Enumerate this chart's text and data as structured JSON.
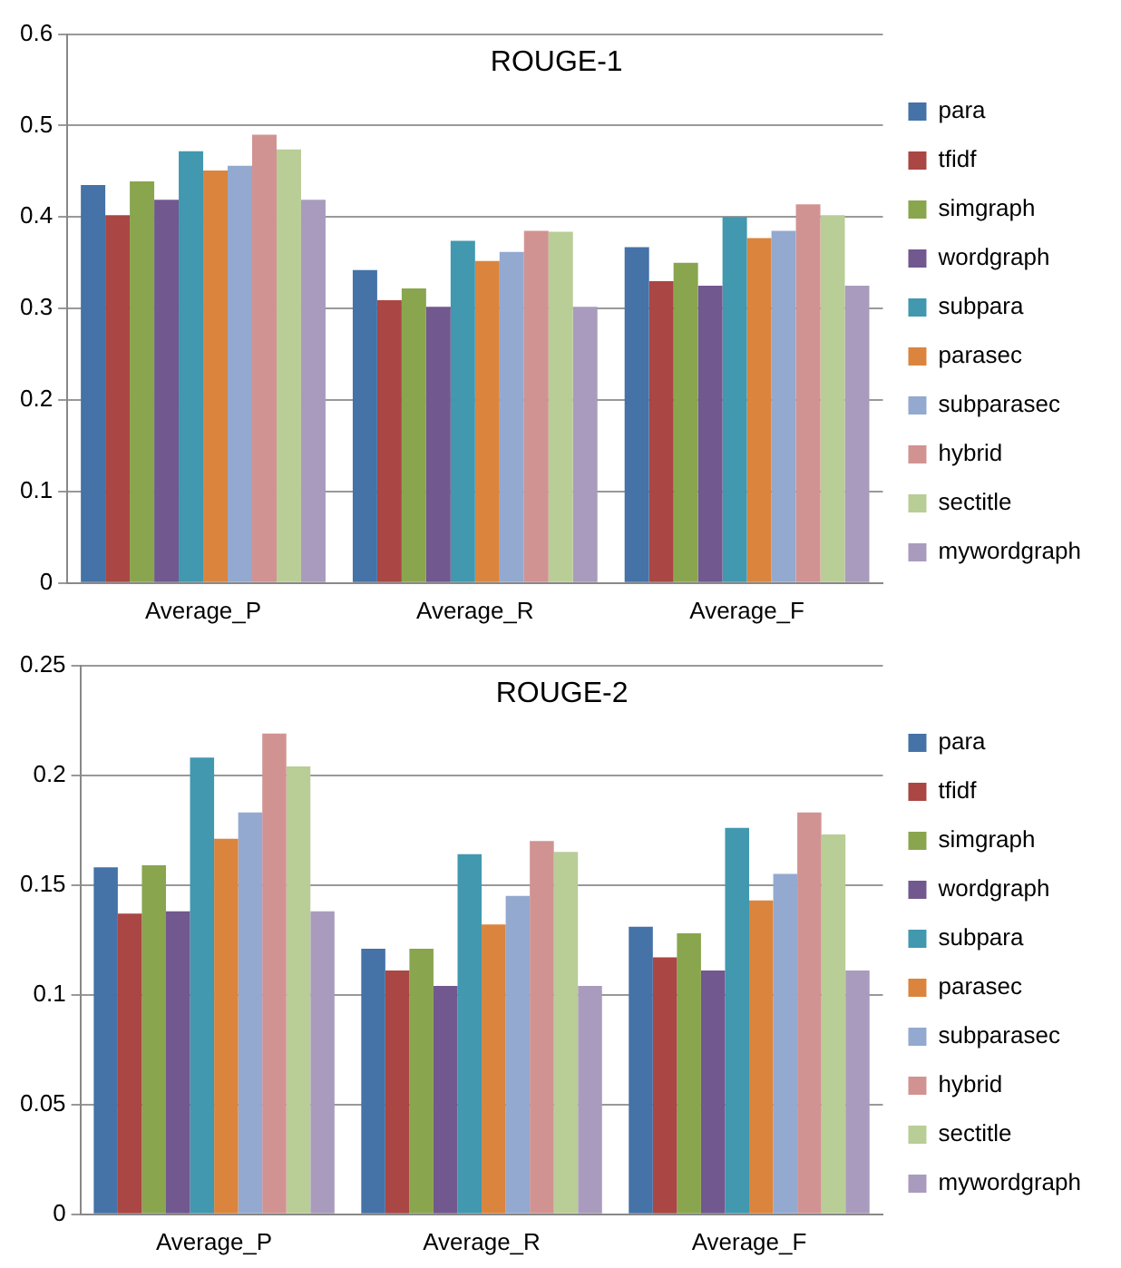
{
  "chart_data": [
    {
      "type": "bar",
      "title": "ROUGE-1",
      "categories": [
        "Average_P",
        "Average_R",
        "Average_F"
      ],
      "ylim": [
        0,
        0.6
      ],
      "yticks": [
        0,
        0.1,
        0.2,
        0.3,
        0.4,
        0.5,
        0.6
      ],
      "grid": "y",
      "legend": "right",
      "series": [
        {
          "name": "para",
          "color": "#4572a7",
          "values": [
            0.435,
            0.342,
            0.367
          ]
        },
        {
          "name": "tfidf",
          "color": "#aa4643",
          "values": [
            0.402,
            0.309,
            0.33
          ]
        },
        {
          "name": "simgraph",
          "color": "#89a54e",
          "values": [
            0.439,
            0.322,
            0.35
          ]
        },
        {
          "name": "wordgraph",
          "color": "#71588f",
          "values": [
            0.419,
            0.302,
            0.325
          ]
        },
        {
          "name": "subpara",
          "color": "#4198af",
          "values": [
            0.472,
            0.374,
            0.4
          ]
        },
        {
          "name": "parasec",
          "color": "#db843d",
          "values": [
            0.451,
            0.352,
            0.377
          ]
        },
        {
          "name": "subparasec",
          "color": "#93a9cf",
          "values": [
            0.456,
            0.362,
            0.385
          ]
        },
        {
          "name": "hybrid",
          "color": "#d19392",
          "values": [
            0.49,
            0.385,
            0.414
          ]
        },
        {
          "name": "sectitle",
          "color": "#b9cd96",
          "values": [
            0.474,
            0.384,
            0.402
          ]
        },
        {
          "name": "mywordgraph",
          "color": "#a99bbd",
          "values": [
            0.419,
            0.302,
            0.325
          ]
        }
      ]
    },
    {
      "type": "bar",
      "title": "ROUGE-2",
      "categories": [
        "Average_P",
        "Average_R",
        "Average_F"
      ],
      "ylim": [
        0,
        0.25
      ],
      "yticks": [
        0,
        0.05,
        0.1,
        0.15,
        0.2,
        0.25
      ],
      "grid": "y",
      "legend": "right",
      "series": [
        {
          "name": "para",
          "color": "#4572a7",
          "values": [
            0.158,
            0.121,
            0.131
          ]
        },
        {
          "name": "tfidf",
          "color": "#aa4643",
          "values": [
            0.137,
            0.111,
            0.117
          ]
        },
        {
          "name": "simgraph",
          "color": "#89a54e",
          "values": [
            0.159,
            0.121,
            0.128
          ]
        },
        {
          "name": "wordgraph",
          "color": "#71588f",
          "values": [
            0.138,
            0.104,
            0.111
          ]
        },
        {
          "name": "subpara",
          "color": "#4198af",
          "values": [
            0.208,
            0.164,
            0.176
          ]
        },
        {
          "name": "parasec",
          "color": "#db843d",
          "values": [
            0.171,
            0.132,
            0.143
          ]
        },
        {
          "name": "subparasec",
          "color": "#93a9cf",
          "values": [
            0.183,
            0.145,
            0.155
          ]
        },
        {
          "name": "hybrid",
          "color": "#d19392",
          "values": [
            0.219,
            0.17,
            0.183
          ]
        },
        {
          "name": "sectitle",
          "color": "#b9cd96",
          "values": [
            0.204,
            0.165,
            0.173
          ]
        },
        {
          "name": "mywordgraph",
          "color": "#a99bbd",
          "values": [
            0.138,
            0.104,
            0.111
          ]
        }
      ]
    }
  ]
}
